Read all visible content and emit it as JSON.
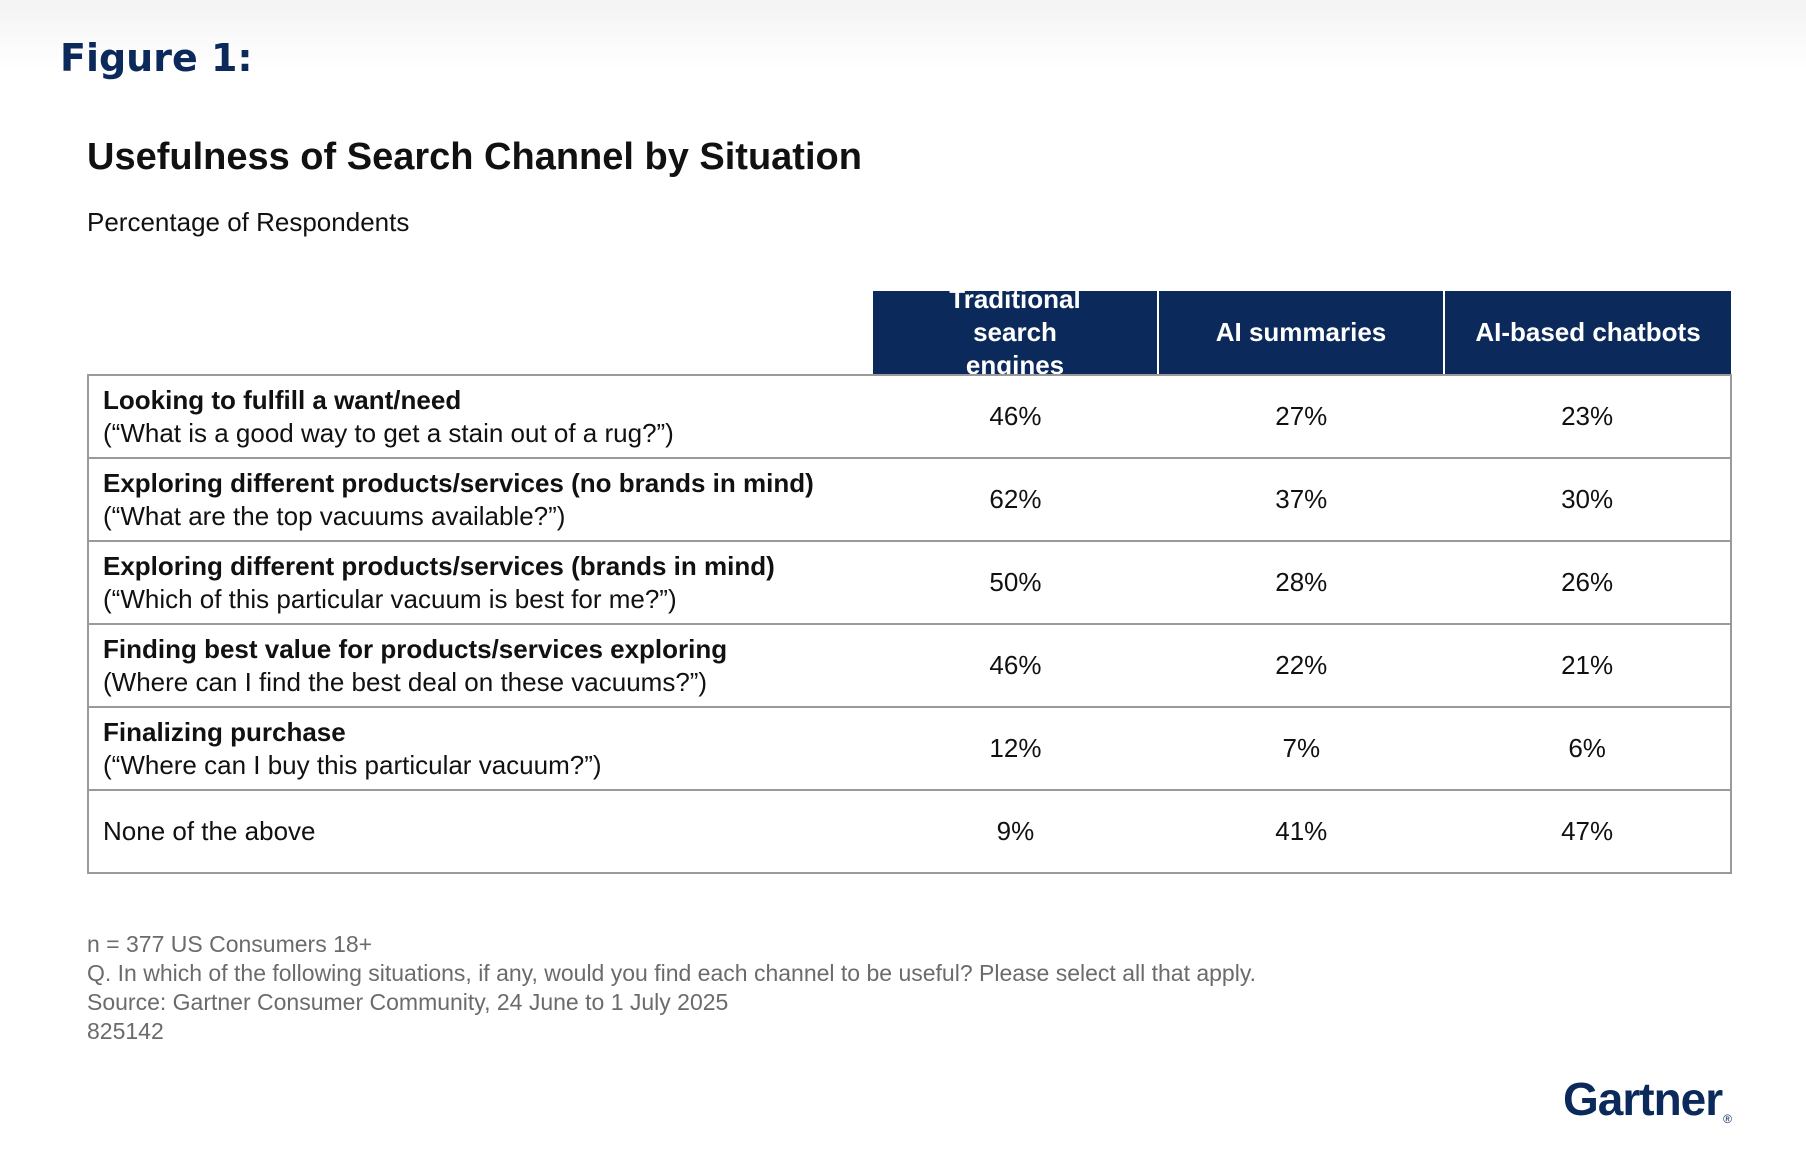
{
  "figure_label": "Figure 1:",
  "chart_data": {
    "type": "table",
    "title": "Usefulness of Search Channel by Situation",
    "subtitle": "Percentage of Respondents",
    "columns": [
      "Traditional search engines",
      "AI summaries",
      "AI-based chatbots"
    ],
    "rows": [
      {
        "situation": "Looking to fulfill a want/need",
        "example": "(“What is a good way to get a stain out of a rug?”)",
        "values": [
          "46%",
          "27%",
          "23%"
        ]
      },
      {
        "situation": "Exploring different products/services (no brands in mind)",
        "example": "(“What are the top vacuums available?”)",
        "values": [
          "62%",
          "37%",
          "30%"
        ]
      },
      {
        "situation": "Exploring different products/services (brands in mind)",
        "example": "(“Which of this particular vacuum is best for me?”)",
        "values": [
          "50%",
          "28%",
          "26%"
        ]
      },
      {
        "situation": "Finding best value for products/services exploring",
        "example": "(Where can I find the best deal on these vacuums?”)",
        "values": [
          "46%",
          "22%",
          "21%"
        ]
      },
      {
        "situation": "Finalizing purchase",
        "example": "(“Where can I buy this particular vacuum?”)",
        "values": [
          "12%",
          "7%",
          "6%"
        ]
      },
      {
        "situation": "None of the above",
        "example": "",
        "values": [
          "9%",
          "41%",
          "47%"
        ]
      }
    ]
  },
  "footnotes": {
    "sample": "n = 377 US Consumers 18+",
    "question": "Q. In which of the following situations, if any, would you find each channel to be useful? Please select all that apply.",
    "source": "Source: Gartner Consumer Community, 24 June to 1 July 2025",
    "id": "825142"
  },
  "logo": {
    "text": "Gartner",
    "mark": "®"
  },
  "colors": {
    "header_bg": "#0b2a5b",
    "brand": "#0b2a5b",
    "border": "#9a9a9a",
    "footnote": "#6b6b6b"
  }
}
